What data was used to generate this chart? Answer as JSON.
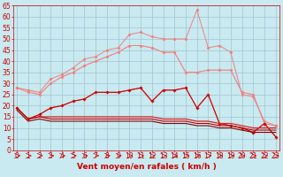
{
  "x": [
    0,
    1,
    2,
    3,
    4,
    5,
    6,
    7,
    8,
    9,
    10,
    11,
    12,
    13,
    14,
    15,
    16,
    17,
    18,
    19,
    20,
    21,
    22,
    23
  ],
  "series": [
    {
      "name": "line_lightest_pink_no_marker",
      "color": "#f0b0b0",
      "linewidth": 0.7,
      "marker": null,
      "markersize": 0,
      "y": [
        28,
        27,
        25,
        30,
        33,
        35,
        38,
        40,
        42,
        44,
        47,
        47,
        46,
        44,
        44,
        35,
        35,
        36,
        36,
        36,
        26,
        25,
        12,
        11
      ]
    },
    {
      "name": "line_light_pink_diamond",
      "color": "#f08080",
      "linewidth": 0.7,
      "marker": "D",
      "markersize": 1.5,
      "y": [
        28,
        26,
        25,
        30,
        33,
        35,
        38,
        40,
        42,
        44,
        47,
        47,
        46,
        44,
        44,
        35,
        35,
        36,
        36,
        36,
        26,
        25,
        12,
        11
      ]
    },
    {
      "name": "line_pink_upper_peak",
      "color": "#f08080",
      "linewidth": 0.7,
      "marker": "D",
      "markersize": 1.5,
      "y": [
        28,
        27,
        26,
        32,
        34,
        37,
        41,
        42,
        45,
        46,
        52,
        53,
        51,
        50,
        50,
        50,
        63,
        46,
        47,
        44,
        25,
        24,
        13,
        11
      ]
    },
    {
      "name": "line_medium_pink_cross",
      "color": "#e06060",
      "linewidth": 0.7,
      "marker": "+",
      "markersize": 3,
      "y": [
        19,
        14,
        16,
        19,
        20,
        22,
        23,
        26,
        26,
        26,
        27,
        28,
        22,
        27,
        27,
        28,
        19,
        25,
        12,
        11,
        10,
        8,
        12,
        6
      ]
    },
    {
      "name": "line_dark_red_diamond",
      "color": "#cc0000",
      "linewidth": 0.8,
      "marker": "D",
      "markersize": 1.5,
      "y": [
        19,
        14,
        16,
        19,
        20,
        22,
        23,
        26,
        26,
        26,
        27,
        28,
        22,
        27,
        27,
        28,
        19,
        25,
        12,
        11,
        10,
        8,
        12,
        6
      ]
    },
    {
      "name": "line_red_flat1",
      "color": "#dd2222",
      "linewidth": 0.9,
      "marker": null,
      "markersize": 0,
      "y": [
        19,
        14,
        15,
        15,
        15,
        15,
        15,
        15,
        15,
        15,
        15,
        15,
        15,
        14,
        14,
        14,
        13,
        13,
        12,
        12,
        11,
        10,
        10,
        10
      ]
    },
    {
      "name": "line_red_flat2",
      "color": "#bb0000",
      "linewidth": 0.8,
      "marker": null,
      "markersize": 0,
      "y": [
        19,
        14,
        15,
        14,
        14,
        14,
        14,
        14,
        14,
        14,
        14,
        14,
        14,
        13,
        13,
        13,
        12,
        12,
        11,
        11,
        10,
        9,
        9,
        9
      ]
    },
    {
      "name": "line_darkest_red_flat",
      "color": "#880000",
      "linewidth": 0.8,
      "marker": null,
      "markersize": 0,
      "y": [
        18,
        13,
        14,
        13,
        13,
        13,
        13,
        13,
        13,
        13,
        13,
        13,
        13,
        12,
        12,
        12,
        11,
        11,
        10,
        10,
        9,
        8,
        8,
        8
      ]
    }
  ],
  "arrow_color": "#cc0000",
  "xlabel": "Vent moyen/en rafales ( km/h )",
  "xlim": [
    -0.3,
    23.3
  ],
  "ylim": [
    0,
    65
  ],
  "yticks": [
    0,
    5,
    10,
    15,
    20,
    25,
    30,
    35,
    40,
    45,
    50,
    55,
    60,
    65
  ],
  "xticks": [
    0,
    1,
    2,
    3,
    4,
    5,
    6,
    7,
    8,
    9,
    10,
    11,
    12,
    13,
    14,
    15,
    16,
    17,
    18,
    19,
    20,
    21,
    22,
    23
  ],
  "background_color": "#c8eaf0",
  "grid_color": "#99bbcc",
  "xlabel_color": "#cc0000",
  "tick_color": "#cc0000",
  "xlabel_fontsize": 6.5,
  "tick_fontsize": 5.5
}
